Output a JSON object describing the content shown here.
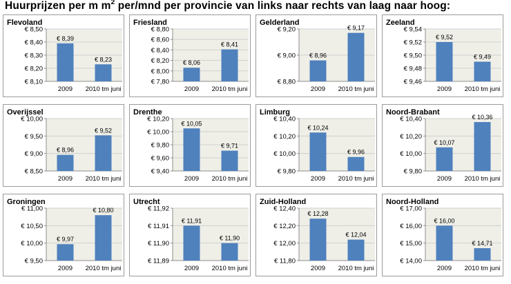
{
  "title_parts": {
    "before_sup": "Huurprijzen per m m",
    "sup": "2",
    "after_sup": " per/mnd per provincie van links naar rechts van laag naar hoog:"
  },
  "colors": {
    "bar": "#4f81bd",
    "plot_bg": "#efefe8",
    "grid": "#cfcfcf",
    "axis": "#8c8c8c",
    "text": "#000000"
  },
  "chart_data": [
    {
      "type": "bar",
      "title": "Flevoland",
      "categories": [
        "2009",
        "2010 tm juni"
      ],
      "values": [
        8.39,
        8.23
      ],
      "value_labels": [
        "€ 8,39",
        "€ 8,23"
      ],
      "ylim": [
        8.1,
        8.5
      ],
      "ticks": [
        8.1,
        8.2,
        8.3,
        8.4,
        8.5
      ],
      "tick_labels": [
        "€ 8,10",
        "€ 8,20",
        "€ 8,30",
        "€ 8,40",
        "€ 8,50"
      ],
      "grid": true
    },
    {
      "type": "bar",
      "title": "Friesland",
      "categories": [
        "2009",
        "2010 tm juni"
      ],
      "values": [
        8.06,
        8.41
      ],
      "value_labels": [
        "€ 8,06",
        "€ 8,41"
      ],
      "ylim": [
        7.8,
        8.8
      ],
      "ticks": [
        7.8,
        8.0,
        8.2,
        8.4,
        8.6,
        8.8
      ],
      "tick_labels": [
        "€ 7,80",
        "€ 8,00",
        "€ 8,20",
        "€ 8,40",
        "€ 8,60",
        "€ 8,80"
      ],
      "grid": true
    },
    {
      "type": "bar",
      "title": "Gelderland",
      "categories": [
        "2009",
        "2010 tm juni"
      ],
      "values": [
        8.96,
        9.17
      ],
      "value_labels": [
        "€ 8,96",
        "€ 9,17"
      ],
      "ylim": [
        8.8,
        9.2
      ],
      "ticks": [
        8.8,
        9.0,
        9.2
      ],
      "tick_labels": [
        "€ 8,80",
        "€ 9,00",
        "€ 9,20"
      ],
      "grid": true
    },
    {
      "type": "bar",
      "title": "Zeeland",
      "categories": [
        "2009",
        "2010 tm juni"
      ],
      "values": [
        9.52,
        9.49
      ],
      "value_labels": [
        "€ 9,52",
        "€ 9,49"
      ],
      "ylim": [
        9.46,
        9.54
      ],
      "ticks": [
        9.46,
        9.48,
        9.5,
        9.52,
        9.54
      ],
      "tick_labels": [
        "€ 9,46",
        "€ 9,48",
        "€ 9,50",
        "€ 9,52",
        "€ 9,54"
      ],
      "grid": true
    },
    {
      "type": "bar",
      "title": "Overijssel",
      "categories": [
        "2009",
        "2010 tm juni"
      ],
      "values": [
        8.96,
        9.52
      ],
      "value_labels": [
        "€ 8,96",
        "€ 9,52"
      ],
      "ylim": [
        8.5,
        10.0
      ],
      "ticks": [
        8.5,
        9.0,
        9.5,
        10.0
      ],
      "tick_labels": [
        "€ 8,50",
        "€ 9,00",
        "€ 9,50",
        "€ 10,00"
      ],
      "grid": true
    },
    {
      "type": "bar",
      "title": "Drenthe",
      "categories": [
        "2009",
        "2010 tm juni"
      ],
      "values": [
        10.05,
        9.71
      ],
      "value_labels": [
        "€ 10,05",
        "€ 9,71"
      ],
      "ylim": [
        9.4,
        10.2
      ],
      "ticks": [
        9.4,
        9.6,
        9.8,
        10.0,
        10.2
      ],
      "tick_labels": [
        "€ 9,40",
        "€ 9,60",
        "€ 9,80",
        "€ 10,00",
        "€ 10,20"
      ],
      "grid": true
    },
    {
      "type": "bar",
      "title": "Limburg",
      "categories": [
        "2009",
        "2010 tm juni"
      ],
      "values": [
        10.24,
        9.96
      ],
      "value_labels": [
        "€ 10,24",
        "€ 9,96"
      ],
      "ylim": [
        9.8,
        10.4
      ],
      "ticks": [
        9.8,
        10.0,
        10.2,
        10.4
      ],
      "tick_labels": [
        "€ 9,80",
        "€ 10,00",
        "€ 10,20",
        "€ 10,40"
      ],
      "grid": true
    },
    {
      "type": "bar",
      "title": "Noord-Brabant",
      "categories": [
        "2009",
        "2010 tm juni"
      ],
      "values": [
        10.07,
        10.36
      ],
      "value_labels": [
        "€ 10,07",
        "€ 10,36"
      ],
      "ylim": [
        9.8,
        10.4
      ],
      "ticks": [
        9.8,
        10.0,
        10.2,
        10.4
      ],
      "tick_labels": [
        "€ 9,80",
        "€ 10,00",
        "€ 10,20",
        "€ 10,40"
      ],
      "grid": true
    },
    {
      "type": "bar",
      "title": "Groningen",
      "categories": [
        "2009",
        "2010 tm juni"
      ],
      "values": [
        9.97,
        10.8
      ],
      "value_labels": [
        "€ 9,97",
        "€ 10,80"
      ],
      "ylim": [
        9.5,
        11.0
      ],
      "ticks": [
        9.5,
        10.0,
        10.5,
        11.0
      ],
      "tick_labels": [
        "€ 9,50",
        "€ 10,00",
        "€ 10,50",
        "€ 11,00"
      ],
      "grid": true
    },
    {
      "type": "bar",
      "title": "Utrecht",
      "categories": [
        "2009",
        "2010 tm juni"
      ],
      "values": [
        11.91,
        11.9
      ],
      "value_labels": [
        "€ 11,91",
        "€ 11,90"
      ],
      "ylim": [
        11.89,
        11.92
      ],
      "ticks": [
        11.89,
        11.9,
        11.91,
        11.92
      ],
      "tick_labels": [
        "€ 11,89",
        "€ 11,90",
        "€ 11,91",
        "€ 11,92"
      ],
      "grid": true
    },
    {
      "type": "bar",
      "title": "Zuid-Holland",
      "categories": [
        "2009",
        "2010 tm juni"
      ],
      "values": [
        12.28,
        12.04
      ],
      "value_labels": [
        "€ 12,28",
        "€ 12,04"
      ],
      "ylim": [
        11.8,
        12.4
      ],
      "ticks": [
        11.8,
        12.0,
        12.2,
        12.4
      ],
      "tick_labels": [
        "€ 11,80",
        "€ 12,00",
        "€ 12,20",
        "€ 12,40"
      ],
      "grid": true
    },
    {
      "type": "bar",
      "title": "Noord-Holland",
      "categories": [
        "2009",
        "2010 tm juni"
      ],
      "values": [
        16.0,
        14.71
      ],
      "value_labels": [
        "€ 16,00",
        "€ 14,71"
      ],
      "ylim": [
        14.0,
        17.0
      ],
      "ticks": [
        14.0,
        15.0,
        16.0,
        17.0
      ],
      "tick_labels": [
        "€ 14,00",
        "€ 15,00",
        "€ 16,00",
        "€ 17,00"
      ],
      "grid": true
    }
  ]
}
